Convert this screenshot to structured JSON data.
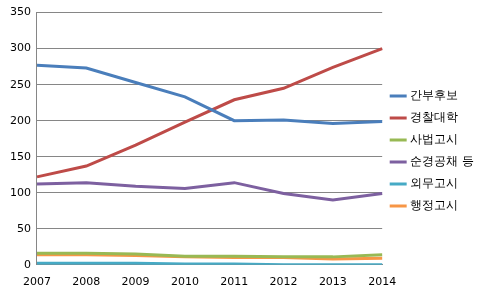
{
  "chart_data": {
    "type": "line",
    "categories": [
      "2007",
      "2008",
      "2009",
      "2010",
      "2011",
      "2012",
      "2013",
      "2014"
    ],
    "series": [
      {
        "name": "간부후보",
        "color": "#4a7ebb",
        "values": [
          277,
          273,
          253,
          233,
          200,
          201,
          196,
          199
        ]
      },
      {
        "name": "경찰대학",
        "color": "#be4b48",
        "values": [
          122,
          137,
          166,
          198,
          229,
          245,
          274,
          300
        ]
      },
      {
        "name": "사법고시",
        "color": "#98b954",
        "values": [
          16,
          16,
          15,
          12,
          12,
          11,
          11,
          14
        ]
      },
      {
        "name": "순경공채 등",
        "color": "#7d60a0",
        "values": [
          112,
          114,
          109,
          106,
          114,
          99,
          90,
          99
        ]
      },
      {
        "name": "외무고시",
        "color": "#46aac5",
        "values": [
          2,
          2,
          2,
          1,
          1,
          0,
          0,
          0
        ]
      },
      {
        "name": "행정고시",
        "color": "#f79646",
        "values": [
          14,
          14,
          13,
          11,
          10,
          10,
          8,
          9
        ]
      }
    ],
    "ylim": [
      0,
      350
    ],
    "yticks": [
      0,
      50,
      100,
      150,
      200,
      250,
      300,
      350
    ],
    "grid": true,
    "legend": "right"
  }
}
